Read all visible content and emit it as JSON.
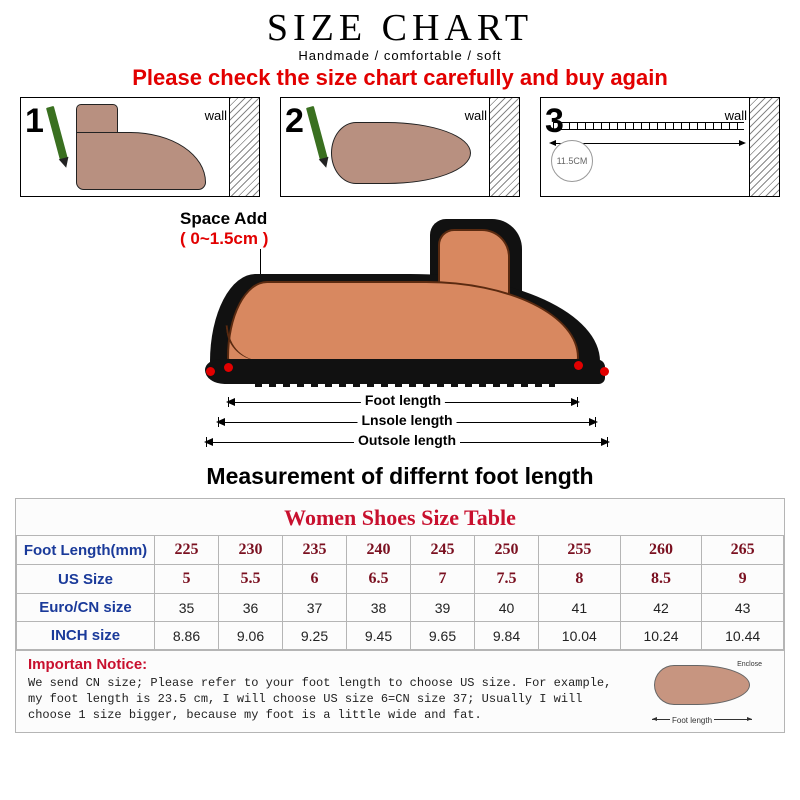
{
  "header": {
    "title": "SIZE CHART",
    "subtitle": "Handmade / comfortable / soft",
    "warning": "Please check the size chart carefully and buy again"
  },
  "steps": {
    "s1": {
      "number": "1",
      "wall": "wall"
    },
    "s2": {
      "number": "2",
      "wall": "wall"
    },
    "s3": {
      "number": "3",
      "wall": "wall",
      "circle": "11.5CM"
    }
  },
  "diagram": {
    "space_add_label": "Space Add",
    "space_add_range": "( 0~1.5cm )",
    "foot_length": "Foot length",
    "insole_length": "Lnsole length",
    "outsole_length": "Outsole length"
  },
  "measurement_heading": "Measurement of differnt foot length",
  "table": {
    "title": "Women Shoes Size Table",
    "rows": {
      "foot_length": {
        "label": "Foot Length(mm)",
        "cells": [
          "225",
          "230",
          "235",
          "240",
          "245",
          "250",
          "255",
          "260",
          "265"
        ]
      },
      "us_size": {
        "label": "US Size",
        "cells": [
          "5",
          "5.5",
          "6",
          "6.5",
          "7",
          "7.5",
          "8",
          "8.5",
          "9"
        ]
      },
      "euro_cn": {
        "label": "Euro/CN size",
        "cells": [
          "35",
          "36",
          "37",
          "38",
          "39",
          "40",
          "41",
          "42",
          "43"
        ]
      },
      "inch": {
        "label": "INCH size",
        "cells": [
          "8.86",
          "9.06",
          "9.25",
          "9.45",
          "9.65",
          "9.84",
          "10.04",
          "10.24",
          "10.44"
        ]
      }
    }
  },
  "notice": {
    "title": "Importan Notice:",
    "body": "We send CN size; Please refer to your foot length to choose US size. For example, my foot length is 23.5 cm, I will choose US size 6=CN size 37; Usually I will choose 1 size bigger, because my foot is a little wide and fat.",
    "mini_foot_label": "Foot length",
    "mini_enclose": "Enclose"
  },
  "colors": {
    "red": "#e20000",
    "darkred": "#7a1020",
    "tableTitle": "#c8102e",
    "headerBlue": "#1a3a9a",
    "skin": "#d88860",
    "border": "#b5b5b5"
  }
}
